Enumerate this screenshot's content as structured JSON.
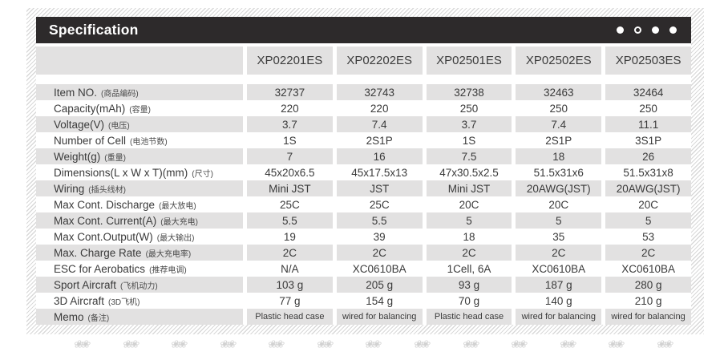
{
  "titlebar": {
    "title": "Specification",
    "dots": [
      "filled",
      "outline",
      "filled",
      "filled"
    ]
  },
  "columns": [
    "XP02201ES",
    "XP02202ES",
    "XP02501ES",
    "XP02502ES",
    "XP02503ES"
  ],
  "rows": [
    {
      "label": "Item NO.",
      "label_cn": "(商品编码)",
      "values": [
        "32737",
        "32743",
        "32738",
        "32463",
        "32464"
      ]
    },
    {
      "label": "Capacity(mAh)",
      "label_cn": "(容量)",
      "values": [
        "220",
        "220",
        "250",
        "250",
        "250"
      ]
    },
    {
      "label": "Voltage(V)",
      "label_cn": "(电压)",
      "values": [
        "3.7",
        "7.4",
        "3.7",
        "7.4",
        "11.1"
      ]
    },
    {
      "label": "Number of Cell",
      "label_cn": "(电池节数)",
      "values": [
        "1S",
        "2S1P",
        "1S",
        "2S1P",
        "3S1P"
      ]
    },
    {
      "label": "Weight(g)",
      "label_cn": "(重量)",
      "values": [
        "7",
        "16",
        "7.5",
        "18",
        "26"
      ]
    },
    {
      "label": "Dimensions(L x W x T)(mm)",
      "label_cn": "(尺寸)",
      "values": [
        "45x20x6.5",
        "45x17.5x13",
        "47x30.5x2.5",
        "51.5x31x6",
        "51.5x31x8"
      ]
    },
    {
      "label": "Wiring",
      "label_cn": "(插头线材)",
      "values": [
        "Mini JST",
        "JST",
        "Mini JST",
        "20AWG(JST)",
        "20AWG(JST)"
      ]
    },
    {
      "label": "Max Cont. Discharge",
      "label_cn": "(最大放电)",
      "values": [
        "25C",
        "25C",
        "20C",
        "20C",
        "20C"
      ]
    },
    {
      "label": "Max Cont.  Current(A)",
      "label_cn": "(最大充电)",
      "values": [
        "5.5",
        "5.5",
        "5",
        "5",
        "5"
      ]
    },
    {
      "label": "Max Cont.Output(W)",
      "label_cn": "(最大输出)",
      "values": [
        "19",
        "39",
        "18",
        "35",
        "53"
      ]
    },
    {
      "label": "Max. Charge Rate",
      "label_cn": "(最大充电率)",
      "values": [
        "2C",
        "2C",
        "2C",
        "2C",
        "2C"
      ]
    },
    {
      "label": "ESC for Aerobatics",
      "label_cn": "(推荐电调)",
      "values": [
        "N/A",
        "XC0610BA",
        "1Cell, 6A",
        "XC0610BA",
        "XC0610BA"
      ]
    },
    {
      "label": "Sport Aircraft",
      "label_cn": "(飞机动力)",
      "values": [
        "103 g",
        "205 g",
        "93 g",
        "187 g",
        "280 g"
      ]
    },
    {
      "label": "3D Aircraft",
      "label_cn": "(3D飞机)",
      "values": [
        "77 g",
        "154 g",
        "70 g",
        "140 g",
        "210 g"
      ]
    },
    {
      "label": "Memo",
      "label_cn": "(备注)",
      "values": [
        "Plastic head case",
        "wired for balancing",
        "Plastic head case",
        "wired for balancing",
        "wired for balancing"
      ],
      "small_text": true
    }
  ],
  "footer": {
    "motif_icon": "flower-cluster-icon",
    "motif_glyph": "❀❀",
    "motif_count": 13
  },
  "colors": {
    "titlebar_bg": "#2d2a2b",
    "row_gray": "#e2e1e1",
    "hatch_line": "#d9d9d9",
    "text": "#3a3a3a"
  }
}
